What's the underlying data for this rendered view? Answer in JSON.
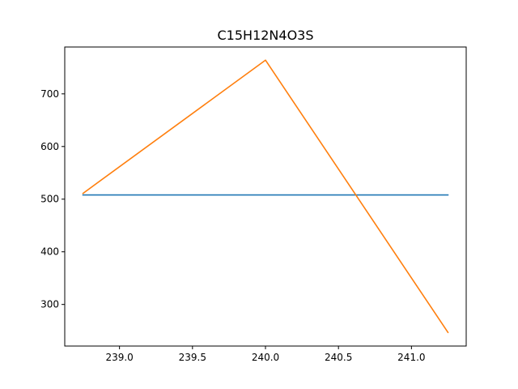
{
  "chart_data": {
    "type": "line",
    "title": "C15H12N4O3S",
    "xlabel": "",
    "ylabel": "",
    "xlim": [
      238.625,
      241.375
    ],
    "ylim": [
      221,
      789
    ],
    "xticks": [
      239.0,
      239.5,
      240.0,
      240.5,
      241.0
    ],
    "xtick_labels": [
      "239.0",
      "239.5",
      "240.0",
      "240.5",
      "241.0"
    ],
    "yticks": [
      300,
      400,
      500,
      600,
      700
    ],
    "ytick_labels": [
      "300",
      "400",
      "500",
      "600",
      "700"
    ],
    "grid": false,
    "series": [
      {
        "color": "#1f77b4",
        "x": [
          238.75,
          241.25
        ],
        "y": [
          508,
          508
        ]
      },
      {
        "color": "#ff7f0e",
        "x": [
          238.75,
          240.0,
          241.25
        ],
        "y": [
          511,
          764,
          247
        ]
      }
    ]
  }
}
